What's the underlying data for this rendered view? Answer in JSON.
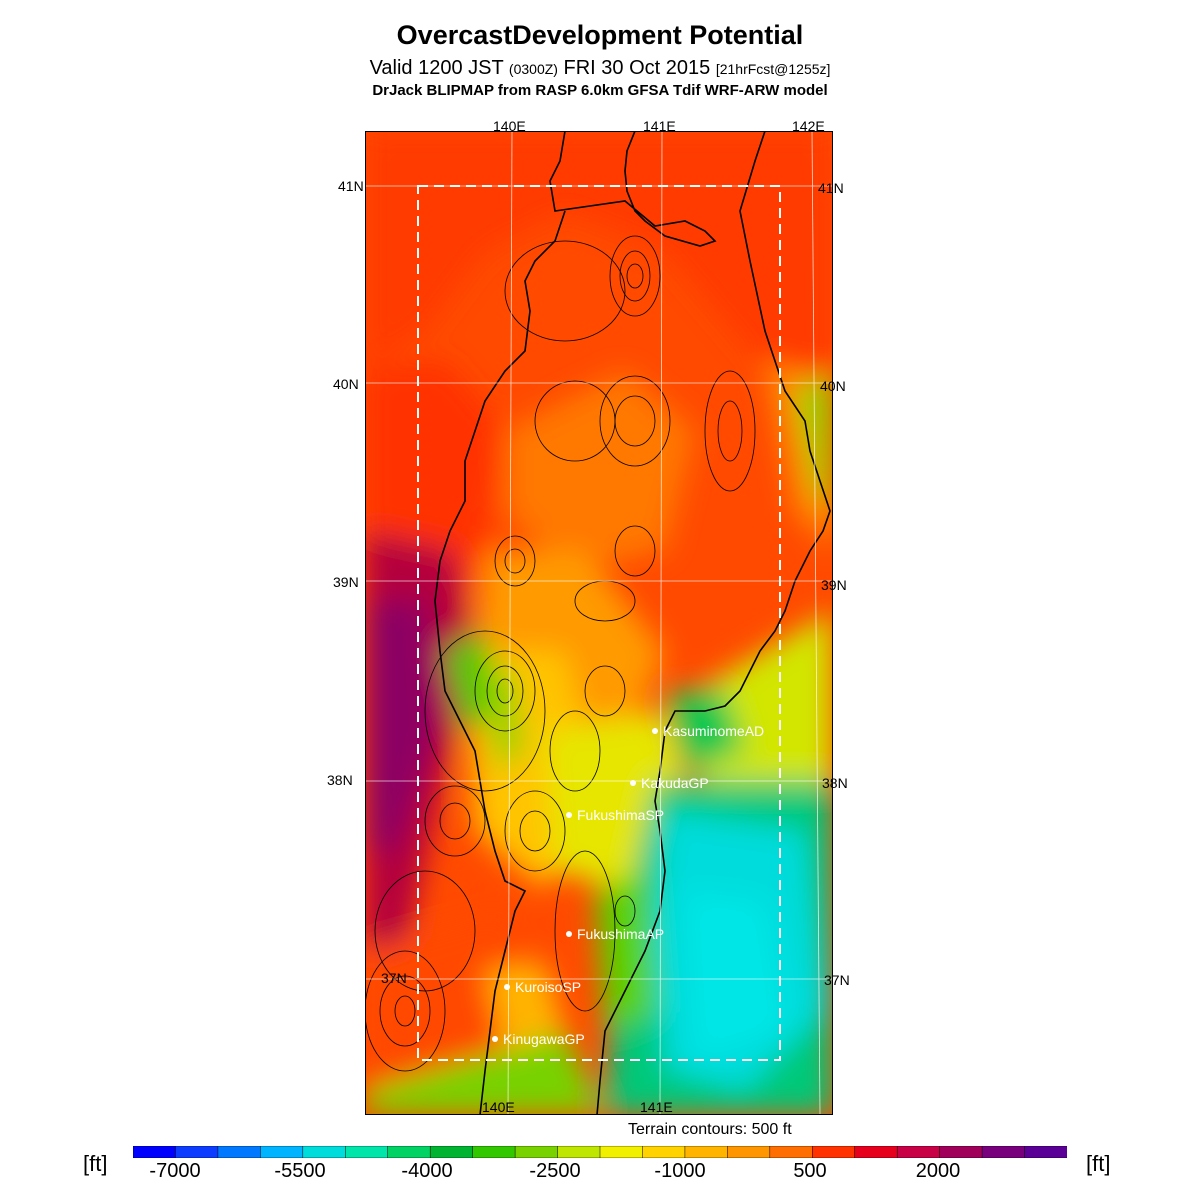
{
  "header": {
    "title": "OvercastDevelopment Potential",
    "valid_main": "Valid 1200 JST",
    "valid_utc": "(0300Z)",
    "valid_date": "FRI 30 Oct 2015",
    "valid_fcst": "[21hrFcst@1255z]",
    "model": "DrJack BLIPMAP from RASP 6.0km GFSA Tdif WRF-ARW model"
  },
  "map": {
    "lon_labels": [
      "140E",
      "141E",
      "142E"
    ],
    "lat_labels": [
      "41N",
      "40N",
      "39N",
      "38N",
      "37N"
    ],
    "stations": [
      {
        "name": "KasuminomeAD"
      },
      {
        "name": "KakudaGP"
      },
      {
        "name": "FukushimaSP"
      },
      {
        "name": "FukushimaAP"
      },
      {
        "name": "KuroisoSP"
      },
      {
        "name": "KinugawaGP"
      }
    ],
    "terrain_note": "Terrain contours: 500 ft"
  },
  "colorbar": {
    "unit": "[ft]",
    "ticks": [
      "-7000",
      "-5500",
      "-4000",
      "-2500",
      "-1000",
      "500",
      "2000"
    ],
    "colors": [
      "#0000ff",
      "#0c3cff",
      "#0078ff",
      "#00b4ff",
      "#00dcdc",
      "#00e6aa",
      "#00d264",
      "#00b432",
      "#32c800",
      "#78d200",
      "#bee600",
      "#f0f000",
      "#ffd200",
      "#ffb400",
      "#ff9600",
      "#ff6e00",
      "#ff3200",
      "#e6001e",
      "#c80046",
      "#a0005a",
      "#78007d",
      "#5a0096"
    ]
  }
}
